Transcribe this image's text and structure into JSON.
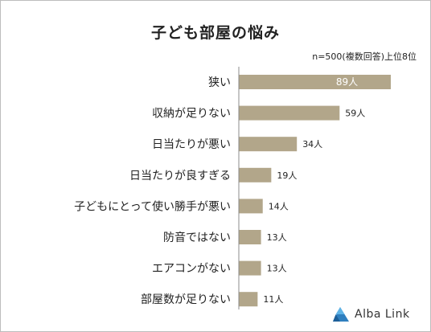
{
  "title": "子ども部屋の悩み",
  "note": "n=500(複数回答)上位8位",
  "brand": "Alba Link",
  "colors": {
    "bar": "#b2a68a",
    "axis": "#8c8c8c",
    "text": "#222222",
    "label_on_bar": "#ffffff",
    "logo_blue": "#2f7fbf"
  },
  "chart_data": {
    "type": "bar",
    "orientation": "horizontal",
    "unit": "人",
    "categories": [
      "狭い",
      "収納が足りない",
      "日当たりが悪い",
      "日当たりが良すぎる",
      "子どもにとって使い勝手が悪い",
      "防音ではない",
      "エアコンがない",
      "部屋数が足りない"
    ],
    "values": [
      89,
      59,
      34,
      19,
      14,
      13,
      13,
      11
    ],
    "value_labels": [
      "89人",
      "59人",
      "34人",
      "19人",
      "14人",
      "13人",
      "13人",
      "11人"
    ],
    "xlim": [
      0,
      89
    ],
    "grid": false,
    "legend": "none"
  }
}
